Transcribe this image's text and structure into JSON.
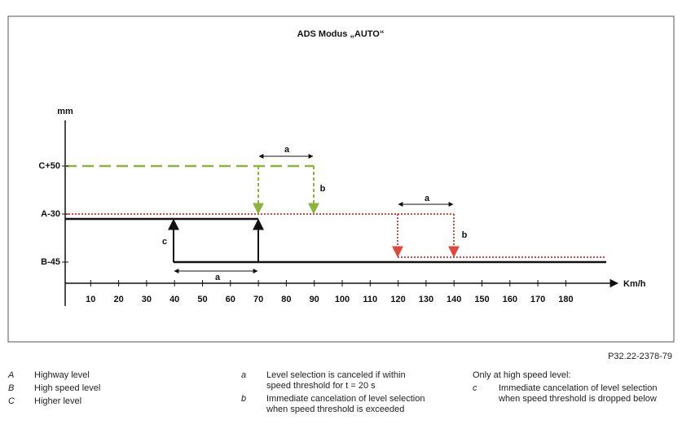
{
  "title": "ADS Modus „AUTO“",
  "y_axis": {
    "unit": "mm",
    "levels": [
      "C+50",
      "A-30",
      "B-45"
    ]
  },
  "x_axis": {
    "unit": "Km/h",
    "ticks": [
      10,
      20,
      30,
      40,
      50,
      60,
      70,
      80,
      90,
      100,
      110,
      120,
      130,
      140,
      150,
      160,
      170,
      180
    ]
  },
  "markers": [
    "a",
    "a",
    "a",
    "b",
    "b",
    "c"
  ],
  "figure_id": "P32.22-2378-79",
  "legend": [
    {
      "items": [
        {
          "key": "A",
          "text": "Highway level"
        },
        {
          "key": "B",
          "text": "High speed level"
        },
        {
          "key": "C",
          "text": "Higher level"
        }
      ]
    },
    {
      "items": [
        {
          "key": "a",
          "text": "Level selection is canceled if within speed threshold for t = 20 s"
        },
        {
          "key": "b",
          "text": "Immediate cancelation of level selection when speed threshold is exceeded"
        }
      ]
    },
    {
      "heading": "Only at high speed level:",
      "items": [
        {
          "key": "c",
          "text": "Immediate cancelation of level selection when speed threshold is dropped below"
        }
      ]
    }
  ]
}
